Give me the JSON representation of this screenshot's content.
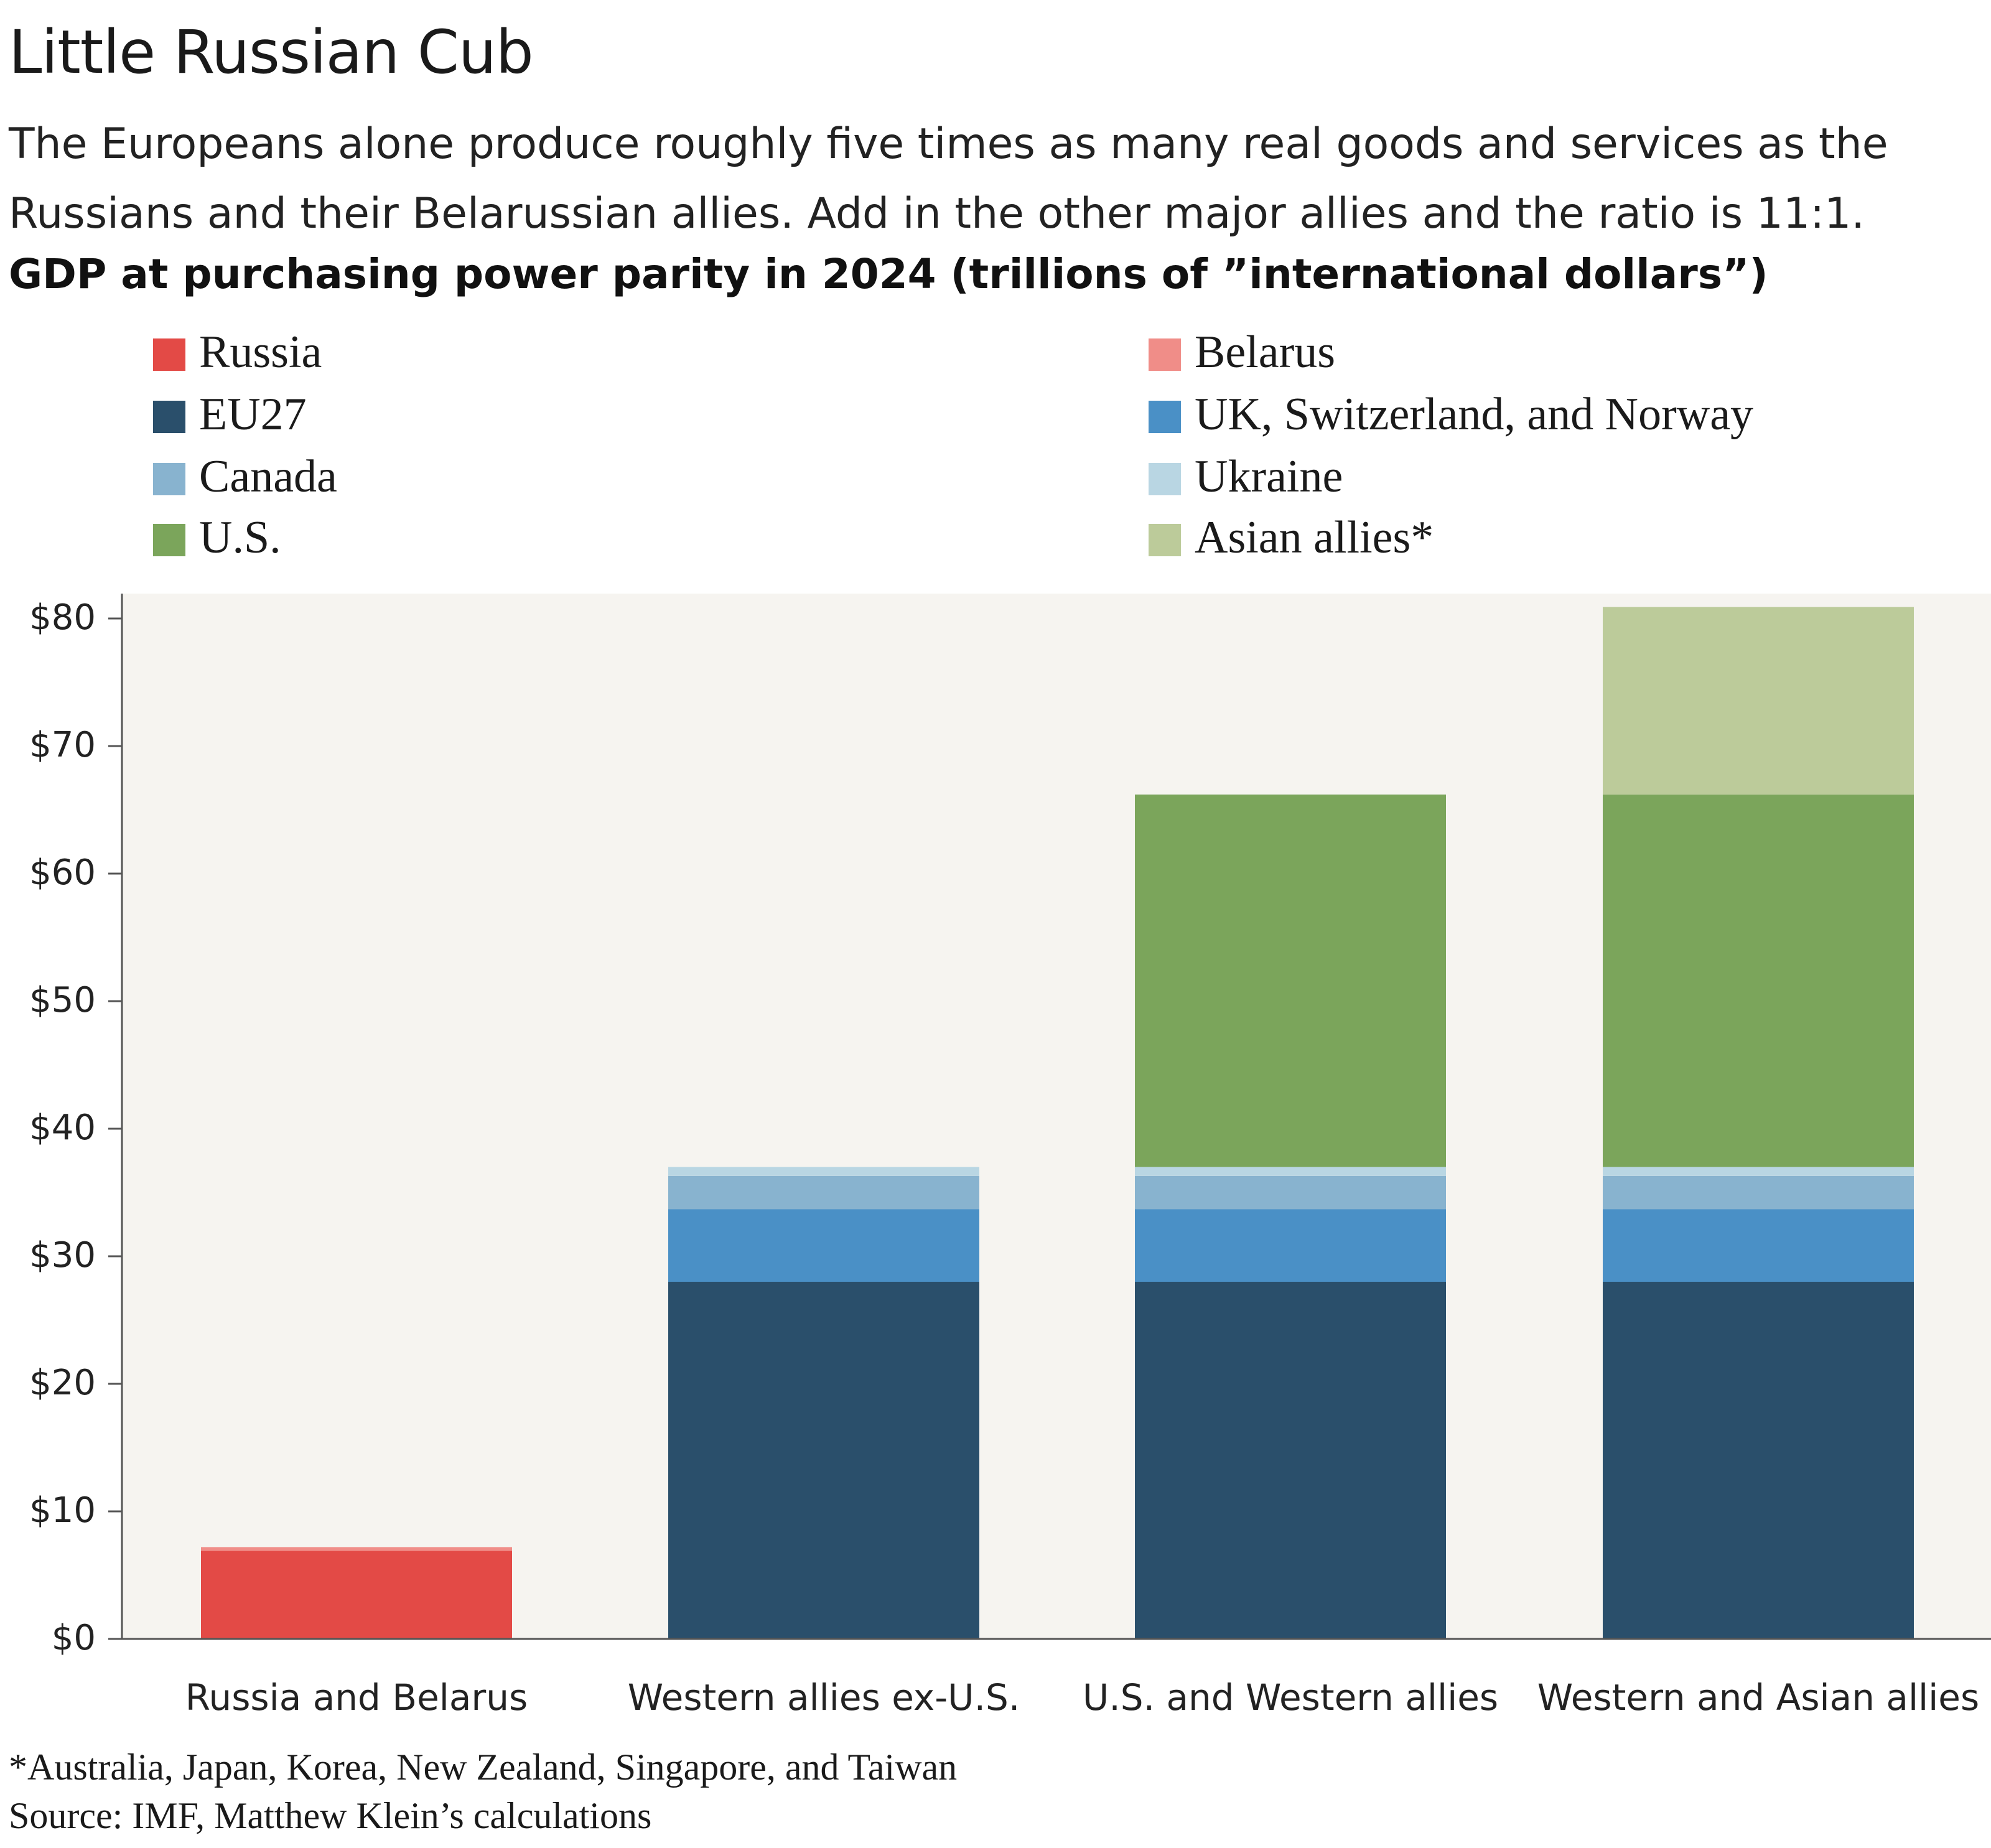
{
  "header": {
    "title": "Little Russian Cub",
    "subtitle_lines": [
      "The Europeans alone produce roughly five times as many real goods and services as the",
      "Russians and their Belarussian allies. Add in the other major allies and the ratio is 11:1."
    ],
    "chart_label": "GDP at purchasing power parity in 2024 (trillions of ”international dollars”)"
  },
  "legend": [
    {
      "label": "Russia",
      "color": "#e34a46"
    },
    {
      "label": "Belarus",
      "color": "#f08d88"
    },
    {
      "label": "EU27",
      "color": "#2a4f6b"
    },
    {
      "label": "UK, Switzerland, and Norway",
      "color": "#4a90c6"
    },
    {
      "label": "Canada",
      "color": "#88b3cf"
    },
    {
      "label": "Ukraine",
      "color": "#b9d6e3"
    },
    {
      "label": "U.S.",
      "color": "#7ba55b"
    },
    {
      "label": "Asian allies*",
      "color": "#bccb9a"
    }
  ],
  "chart_data": {
    "type": "bar",
    "stacked": true,
    "categories": [
      "Russia and Belarus",
      "Western allies ex-U.S.",
      "U.S. and Western allies",
      "Western and Asian allies"
    ],
    "series": [
      {
        "name": "Russia",
        "color": "#e34a46",
        "values": [
          6.9,
          0,
          0,
          0
        ]
      },
      {
        "name": "Belarus",
        "color": "#f08d88",
        "values": [
          0.3,
          0,
          0,
          0
        ]
      },
      {
        "name": "EU27",
        "color": "#2a4f6b",
        "values": [
          0,
          28.0,
          28.0,
          28.0
        ]
      },
      {
        "name": "UK, Switzerland, and Norway",
        "color": "#4a90c6",
        "values": [
          0,
          5.7,
          5.7,
          5.7
        ]
      },
      {
        "name": "Canada",
        "color": "#88b3cf",
        "values": [
          0,
          2.6,
          2.6,
          2.6
        ]
      },
      {
        "name": "Ukraine",
        "color": "#b9d6e3",
        "values": [
          0,
          0.7,
          0.7,
          0.7
        ]
      },
      {
        "name": "U.S.",
        "color": "#7ba55b",
        "values": [
          0,
          0,
          29.2,
          29.2
        ]
      },
      {
        "name": "Asian allies*",
        "color": "#bccb9a",
        "values": [
          0,
          0,
          0,
          14.7
        ]
      }
    ],
    "ylim": [
      0,
      80
    ],
    "yticks": [
      0,
      10,
      20,
      30,
      40,
      50,
      60,
      70,
      80
    ],
    "ytick_labels": [
      "$0",
      "$10",
      "$20",
      "$30",
      "$40",
      "$50",
      "$60",
      "$70",
      "$80"
    ],
    "plot_background": "#f6f4f0",
    "grid": false,
    "legend_position": "top"
  },
  "footnote": "*Australia, Japan, Korea, New Zealand, Singapore, and Taiwan",
  "source": "Source: IMF, Matthew Klein’s calculations"
}
